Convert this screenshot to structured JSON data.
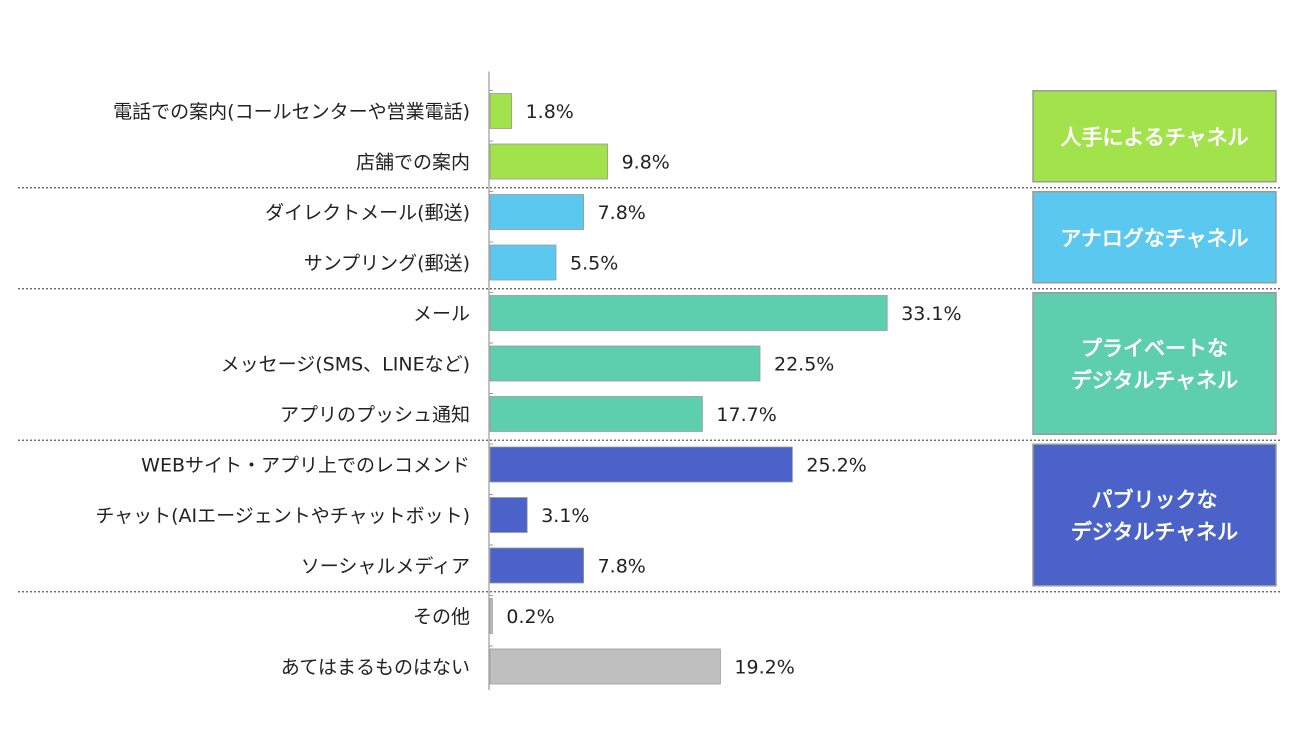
{
  "chart_data": {
    "type": "bar",
    "orientation": "horizontal",
    "value_suffix": "%",
    "xlim": [
      0,
      40
    ],
    "grid": false,
    "groups": [
      {
        "label_lines": [
          "人手によるチャネル"
        ],
        "color": "#a2e24b",
        "items": [
          {
            "label": "電話での案内(コールセンターや営業電話)",
            "value": 1.8
          },
          {
            "label": "店舗での案内",
            "value": 9.8
          }
        ]
      },
      {
        "label_lines": [
          "アナログなチャネル"
        ],
        "color": "#5bc8f0",
        "items": [
          {
            "label": "ダイレクトメール(郵送)",
            "value": 7.8
          },
          {
            "label": "サンプリング(郵送)",
            "value": 5.5
          }
        ]
      },
      {
        "label_lines": [
          "プライベートな",
          "デジタルチャネル"
        ],
        "color": "#5ecfae",
        "items": [
          {
            "label": "メール",
            "value": 33.1
          },
          {
            "label": "メッセージ(SMS、LINEなど)",
            "value": 22.5
          },
          {
            "label": "アプリのプッシュ通知",
            "value": 17.7
          }
        ]
      },
      {
        "label_lines": [
          "パブリックな",
          "デジタルチャネル"
        ],
        "color": "#4b63c9",
        "items": [
          {
            "label": "WEBサイト・アプリ上でのレコメンド",
            "value": 25.2
          },
          {
            "label": "チャット(AIエージェントやチャットボット)",
            "value": 3.1
          },
          {
            "label": "ソーシャルメディア",
            "value": 7.8
          }
        ]
      },
      {
        "label_lines": [],
        "color": "#bfbfbf",
        "items": [
          {
            "label": "その他",
            "value": 0.2
          },
          {
            "label": "あてはまるものはない",
            "value": 19.2
          }
        ]
      }
    ]
  }
}
